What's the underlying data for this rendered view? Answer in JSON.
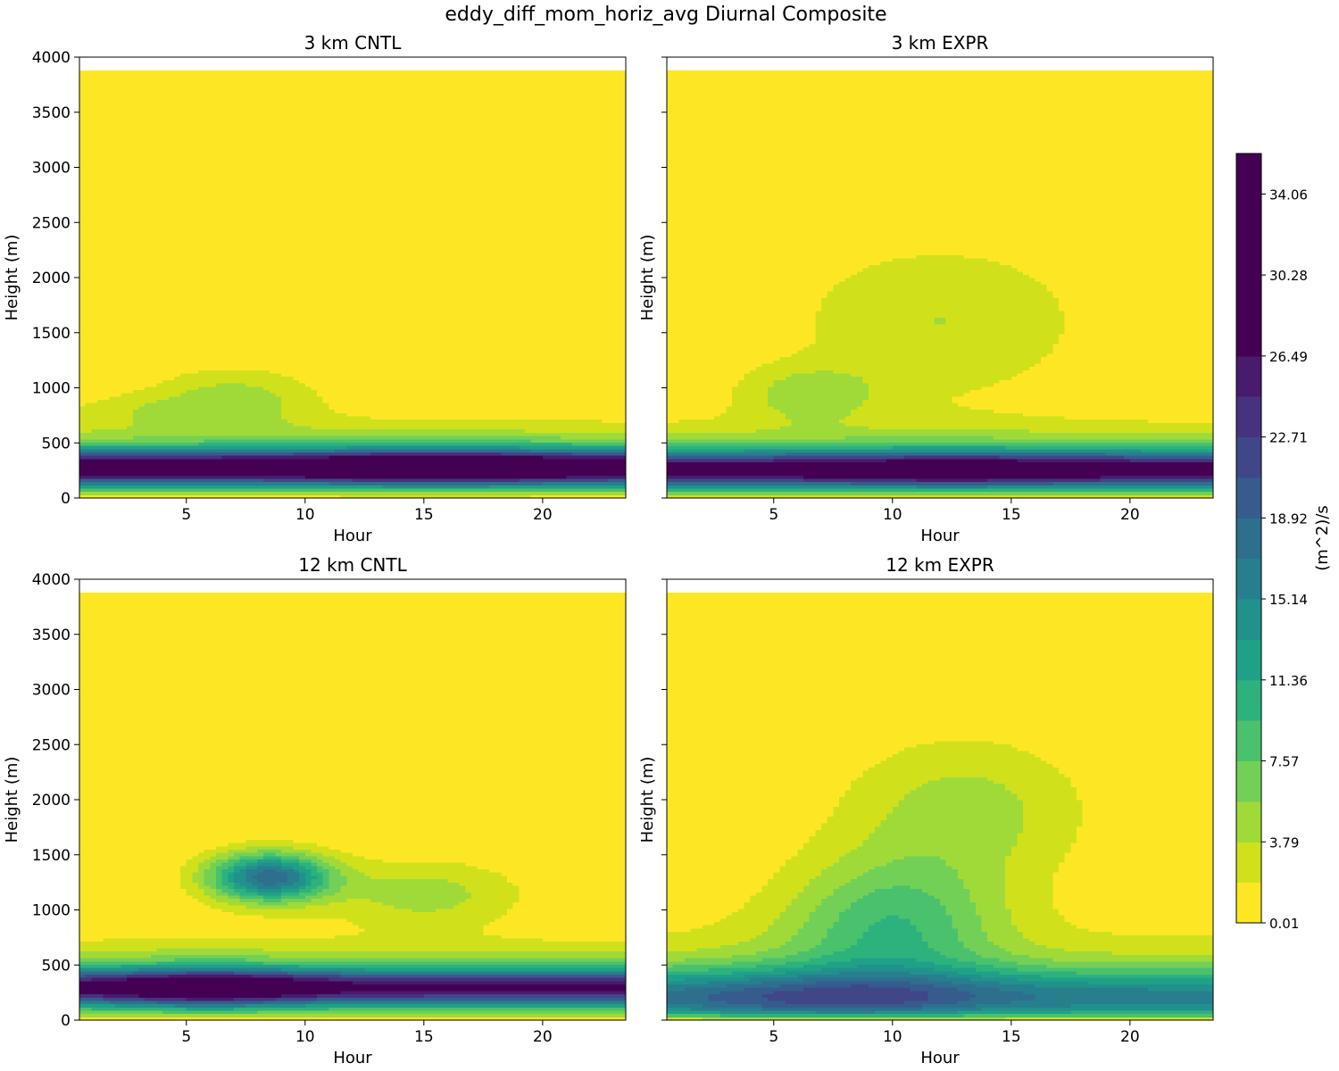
{
  "chart_data": {
    "type": "contour",
    "suptitle": "eddy_diff_mom_horiz_avg Diurnal Composite",
    "xlabel": "Hour",
    "ylabel": "Height (m)",
    "xlim": [
      0.5,
      23.5
    ],
    "ylim": [
      0,
      4000
    ],
    "xticks": [
      5,
      10,
      15,
      20
    ],
    "yticks": [
      0,
      500,
      1000,
      1500,
      2000,
      2500,
      3000,
      3500,
      4000
    ],
    "data_top_height": 3880,
    "colorbar": {
      "label": "(m^2)/s",
      "min": 0.01,
      "max": 35.95,
      "n_levels": 19,
      "tick_labels": [
        "0.01",
        "3.79",
        "7.57",
        "11.36",
        "15.14",
        "18.92",
        "22.71",
        "26.49",
        "30.28",
        "34.06"
      ],
      "colormap": [
        "#fde725",
        "#d0e11c",
        "#a0da39",
        "#73d056",
        "#4ac16d",
        "#2db27d",
        "#1fa187",
        "#21918c",
        "#277f8e",
        "#2e6f8e",
        "#365c8d",
        "#3f4788",
        "#46327e",
        "#481b6d",
        "#440154"
      ]
    },
    "panels": [
      {
        "title": "3 km CNTL",
        "field": {
          "base_amp": 24,
          "base_diurnal": [
            [
              15.5,
              5.0,
              0.2
            ]
          ],
          "base_center": 280,
          "base_width": 150,
          "upper": [
            {
              "x": 7,
              "z": 900,
              "sx": 3.5,
              "sz": 280,
              "amp": 4.5
            },
            {
              "x": 3,
              "z": 800,
              "sx": 3.0,
              "sz": 150,
              "amp": 2.0
            }
          ]
        }
      },
      {
        "title": "3 km EXPR",
        "field": {
          "base_amp": 22,
          "base_diurnal": [
            [
              12.5,
              5.0,
              0.12
            ]
          ],
          "base_center": 260,
          "base_width": 160,
          "upper": [
            {
              "x": 12,
              "z": 1600,
              "sx": 6.0,
              "sz": 700,
              "amp": 3.6
            },
            {
              "x": 6.5,
              "z": 950,
              "sx": 3.0,
              "sz": 260,
              "amp": 4.5
            }
          ]
        }
      },
      {
        "title": "12 km CNTL",
        "field": {
          "base_amp": 20,
          "base_diurnal": [
            [
              6.0,
              4.0,
              0.3
            ]
          ],
          "base_center": 300,
          "base_width": 160,
          "upper": [
            {
              "x": 8.5,
              "z": 1300,
              "sx": 2.5,
              "sz": 220,
              "amp": 18
            },
            {
              "x": 15,
              "z": 1150,
              "sx": 4.0,
              "sz": 300,
              "amp": 4.5
            }
          ]
        }
      },
      {
        "title": "12 km EXPR",
        "field": {
          "base_amp": 12,
          "base_diurnal": [
            [
              7.0,
              6.0,
              0.3
            ]
          ],
          "base_center": 200,
          "base_width": 260,
          "upper": [
            {
              "x": 10,
              "z": 900,
              "sx": 4.5,
              "sz": 600,
              "amp": 8.0
            },
            {
              "x": 13,
              "z": 1900,
              "sx": 5.0,
              "sz": 650,
              "amp": 4.5
            }
          ]
        }
      }
    ]
  }
}
